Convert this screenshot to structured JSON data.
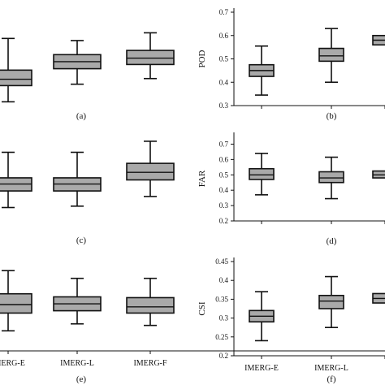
{
  "colors": {
    "box_fill": "#a9a9a9",
    "box_stroke": "#111111",
    "axis": "#111111"
  },
  "chart_data": [
    {
      "panel": "(a)",
      "type": "box",
      "title": "",
      "ylabel": "",
      "categories": [
        "IMERG-E",
        "IMERG-L",
        "IMERG-F"
      ],
      "boxes": [
        {
          "min": 0.1,
          "q1": 0.33,
          "median": 0.42,
          "q3": 0.55,
          "max": 1.0
        },
        {
          "min": 0.35,
          "q1": 0.57,
          "median": 0.67,
          "q3": 0.77,
          "max": 0.97
        },
        {
          "min": 0.43,
          "q1": 0.63,
          "median": 0.72,
          "q3": 0.83,
          "max": 1.08
        }
      ],
      "ylim": [
        0,
        1.2
      ],
      "yticks": [],
      "show_x_axis": false
    },
    {
      "panel": "(b)",
      "type": "box",
      "ylabel": "POD",
      "categories": [
        "IMERG-E",
        "IMERG-L",
        "IMERG-F"
      ],
      "boxes": [
        {
          "min": 0.345,
          "q1": 0.425,
          "median": 0.45,
          "q3": 0.475,
          "max": 0.555
        },
        {
          "min": 0.4,
          "q1": 0.49,
          "median": 0.513,
          "q3": 0.545,
          "max": 0.63
        },
        {
          "min": null,
          "q1": 0.56,
          "median": 0.58,
          "q3": 0.6,
          "max": null
        }
      ],
      "ylim": [
        0.3,
        0.7
      ],
      "yticks": [
        "0.3",
        "0.4",
        "0.5",
        "0.6",
        "0.7"
      ],
      "show_x_axis": true,
      "show_xticklabels": false
    },
    {
      "panel": "(c)",
      "type": "box",
      "ylabel": "",
      "categories": [
        "IMERG-E",
        "IMERG-L",
        "IMERG-F"
      ],
      "boxes": [
        {
          "min": 0.1,
          "q1": 0.34,
          "median": 0.44,
          "q3": 0.53,
          "max": 0.9
        },
        {
          "min": 0.12,
          "q1": 0.34,
          "median": 0.44,
          "q3": 0.53,
          "max": 0.9
        },
        {
          "min": 0.26,
          "q1": 0.5,
          "median": 0.61,
          "q3": 0.74,
          "max": 1.06
        }
      ],
      "ylim": [
        0,
        1.2
      ],
      "yticks": [],
      "show_x_axis": false
    },
    {
      "panel": "(d)",
      "type": "box",
      "ylabel": "FAR",
      "categories": [
        "IMERG-E",
        "IMERG-L",
        "IMERG-F"
      ],
      "boxes": [
        {
          "min": 0.37,
          "q1": 0.47,
          "median": 0.5,
          "q3": 0.54,
          "max": 0.64
        },
        {
          "min": 0.345,
          "q1": 0.45,
          "median": 0.48,
          "q3": 0.52,
          "max": 0.615
        },
        {
          "min": null,
          "q1": 0.48,
          "median": 0.5,
          "q3": 0.525,
          "max": null
        }
      ],
      "ylim": [
        0.2,
        0.75
      ],
      "yticks": [
        "0.2",
        "0.3",
        "0.4",
        "0.5",
        "0.6",
        "0.7"
      ],
      "show_x_axis": true,
      "show_xticklabels": false
    },
    {
      "panel": "(e)",
      "type": "box",
      "ylabel": "",
      "categories": [
        "IMERG-E",
        "IMERG-L",
        "IMERG-F"
      ],
      "boxes": [
        {
          "min": 0.26,
          "q1": 0.49,
          "median": 0.6,
          "q3": 0.74,
          "max": 1.04
        },
        {
          "min": 0.35,
          "q1": 0.52,
          "median": 0.61,
          "q3": 0.7,
          "max": 0.94
        },
        {
          "min": 0.33,
          "q1": 0.49,
          "median": 0.57,
          "q3": 0.69,
          "max": 0.94
        }
      ],
      "ylim": [
        0,
        1.2
      ],
      "yticks": [],
      "show_x_axis": true,
      "show_xticklabels": true
    },
    {
      "panel": "(f)",
      "type": "box",
      "ylabel": "CSI",
      "categories": [
        "IMERG-E",
        "IMERG-L",
        "IMERG-F"
      ],
      "boxes": [
        {
          "min": 0.24,
          "q1": 0.29,
          "median": 0.305,
          "q3": 0.32,
          "max": 0.37
        },
        {
          "min": 0.275,
          "q1": 0.325,
          "median": 0.345,
          "q3": 0.36,
          "max": 0.41
        },
        {
          "min": null,
          "q1": 0.34,
          "median": 0.352,
          "q3": 0.365,
          "max": null
        }
      ],
      "ylim": [
        0.2,
        0.45
      ],
      "yticks": [
        "0.2",
        "0.25",
        "0.3",
        "0.35",
        "0.4",
        "0.45"
      ],
      "show_x_axis": true,
      "show_xticklabels": true,
      "xticklabels": [
        "IMERG-E",
        "IMERG-L",
        ""
      ]
    }
  ]
}
